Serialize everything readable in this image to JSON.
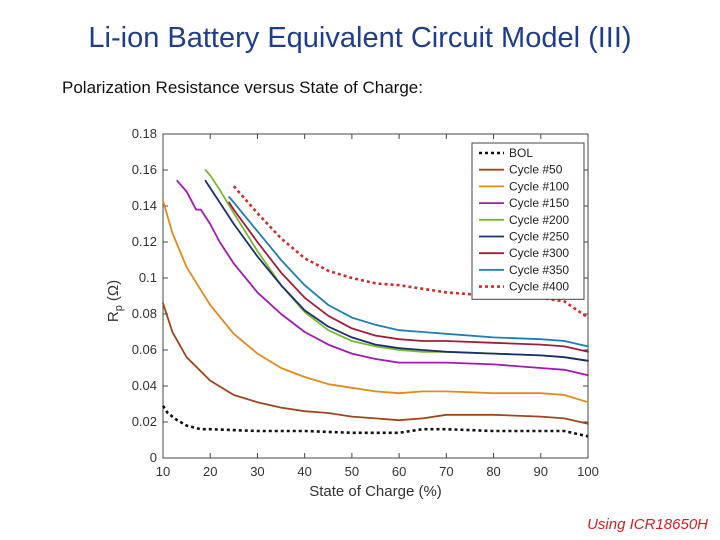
{
  "slide": {
    "title": "Li-ion Battery Equivalent Circuit Model (III)",
    "subtitle": "Polarization Resistance versus State of Charge:",
    "footnote": "Using ICR18650H"
  },
  "chart_data": {
    "type": "line",
    "xlabel": "State of Charge (%)",
    "ylabel_main": "R",
    "ylabel_sub": "p",
    "ylabel_unit": "(Ω)",
    "xlim": [
      10,
      100
    ],
    "ylim": [
      0,
      0.18
    ],
    "xticks": [
      10,
      20,
      30,
      40,
      50,
      60,
      70,
      80,
      90,
      100
    ],
    "yticks": [
      0,
      0.02,
      0.04,
      0.06,
      0.08,
      0.1,
      0.12,
      0.14,
      0.16,
      0.18
    ],
    "legend_position": "top-right",
    "grid": false,
    "series": [
      {
        "name": "BOL",
        "color": "#111111",
        "dash": "dotted",
        "x": [
          10,
          11,
          13,
          15,
          18,
          20,
          30,
          40,
          50,
          55,
          60,
          65,
          70,
          80,
          90,
          95,
          100
        ],
        "y": [
          0.029,
          0.025,
          0.021,
          0.018,
          0.016,
          0.016,
          0.015,
          0.015,
          0.014,
          0.014,
          0.014,
          0.016,
          0.016,
          0.015,
          0.015,
          0.015,
          0.012
        ]
      },
      {
        "name": "Cycle #50",
        "color": "#a0461c",
        "dash": "solid",
        "x": [
          10,
          12,
          15,
          20,
          25,
          30,
          35,
          40,
          45,
          50,
          55,
          60,
          65,
          70,
          80,
          90,
          95,
          100
        ],
        "y": [
          0.086,
          0.07,
          0.056,
          0.043,
          0.035,
          0.031,
          0.028,
          0.026,
          0.025,
          0.023,
          0.022,
          0.021,
          0.022,
          0.024,
          0.024,
          0.023,
          0.022,
          0.019
        ]
      },
      {
        "name": "Cycle #100",
        "color": "#e08a1a",
        "dash": "solid",
        "x": [
          10,
          12,
          15,
          20,
          25,
          30,
          35,
          40,
          45,
          50,
          55,
          60,
          65,
          70,
          80,
          90,
          95,
          100
        ],
        "y": [
          0.143,
          0.125,
          0.106,
          0.085,
          0.069,
          0.058,
          0.05,
          0.045,
          0.041,
          0.039,
          0.037,
          0.036,
          0.037,
          0.037,
          0.036,
          0.036,
          0.035,
          0.031
        ]
      },
      {
        "name": "Cycle #150",
        "color": "#a21ab0",
        "dash": "solid",
        "x": [
          13,
          15,
          17,
          18,
          20,
          22,
          25,
          30,
          35,
          40,
          45,
          50,
          55,
          60,
          65,
          70,
          80,
          90,
          95,
          100
        ],
        "y": [
          0.154,
          0.148,
          0.138,
          0.138,
          0.13,
          0.12,
          0.108,
          0.092,
          0.08,
          0.07,
          0.063,
          0.058,
          0.055,
          0.053,
          0.053,
          0.053,
          0.052,
          0.05,
          0.049,
          0.046
        ]
      },
      {
        "name": "Cycle #200",
        "color": "#7ab830",
        "dash": "solid",
        "x": [
          19,
          20,
          22,
          25,
          30,
          35,
          40,
          45,
          50,
          55,
          60,
          65,
          70,
          80,
          90,
          95,
          100
        ],
        "y": [
          0.16,
          0.157,
          0.149,
          0.136,
          0.115,
          0.096,
          0.081,
          0.071,
          0.065,
          0.062,
          0.06,
          0.059,
          0.059,
          0.058,
          0.057,
          0.056,
          0.054
        ]
      },
      {
        "name": "Cycle #250",
        "color": "#1a2f6e",
        "dash": "solid",
        "x": [
          19,
          20,
          22,
          25,
          30,
          35,
          40,
          45,
          50,
          55,
          60,
          65,
          70,
          80,
          90,
          95,
          100
        ],
        "y": [
          0.154,
          0.15,
          0.142,
          0.13,
          0.112,
          0.096,
          0.082,
          0.073,
          0.067,
          0.063,
          0.061,
          0.06,
          0.059,
          0.058,
          0.057,
          0.056,
          0.054
        ]
      },
      {
        "name": "Cycle #300",
        "color": "#a01e3c",
        "dash": "solid",
        "x": [
          24,
          25,
          30,
          35,
          40,
          45,
          50,
          55,
          60,
          65,
          70,
          80,
          90,
          95,
          100
        ],
        "y": [
          0.142,
          0.138,
          0.12,
          0.103,
          0.089,
          0.079,
          0.072,
          0.068,
          0.066,
          0.065,
          0.065,
          0.064,
          0.063,
          0.062,
          0.059
        ]
      },
      {
        "name": "Cycle #350",
        "color": "#1e7fb0",
        "dash": "solid",
        "x": [
          24,
          25,
          30,
          35,
          40,
          45,
          50,
          55,
          60,
          65,
          70,
          80,
          90,
          95,
          100
        ],
        "y": [
          0.145,
          0.142,
          0.126,
          0.11,
          0.096,
          0.085,
          0.078,
          0.074,
          0.071,
          0.07,
          0.069,
          0.067,
          0.066,
          0.065,
          0.062
        ]
      },
      {
        "name": "Cycle #400",
        "color": "#d22b2b",
        "dash": "dotted",
        "x": [
          25,
          27,
          30,
          35,
          40,
          45,
          50,
          55,
          60,
          65,
          70,
          75,
          80,
          85,
          90,
          95,
          100
        ],
        "y": [
          0.151,
          0.145,
          0.136,
          0.122,
          0.111,
          0.104,
          0.1,
          0.097,
          0.096,
          0.094,
          0.092,
          0.091,
          0.09,
          0.09,
          0.089,
          0.087,
          0.078
        ]
      }
    ]
  }
}
